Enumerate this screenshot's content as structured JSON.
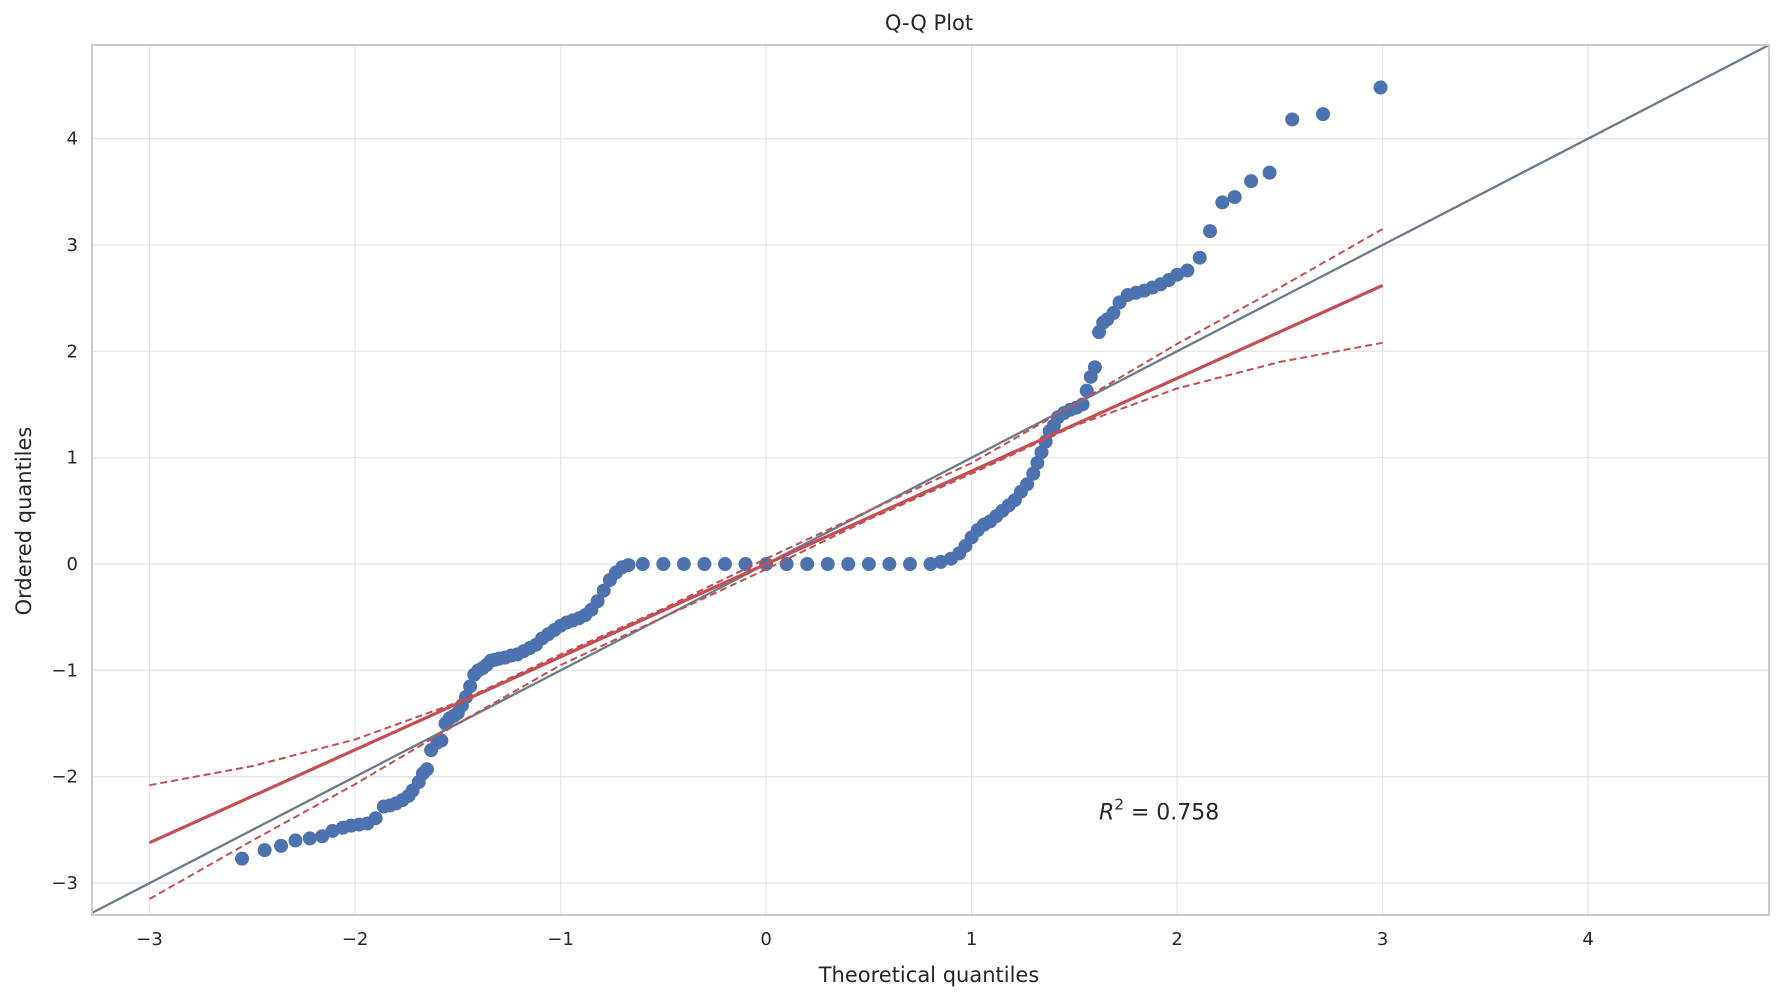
{
  "chart_data": {
    "type": "scatter",
    "title": "Q-Q Plot",
    "xlabel": "Theoretical quantiles",
    "ylabel": "Ordered quantiles",
    "xlim": [
      -3.28,
      4.88
    ],
    "ylim": [
      -3.3,
      4.88
    ],
    "xticks": [
      -3,
      -2,
      -1,
      0,
      1,
      2,
      3,
      4
    ],
    "yticks": [
      -3,
      -2,
      -1,
      0,
      1,
      2,
      3,
      4
    ],
    "xtick_labels": [
      "−3",
      "−2",
      "−1",
      "0",
      "1",
      "2",
      "3",
      "4"
    ],
    "ytick_labels": [
      "−3",
      "−2",
      "−1",
      "0",
      "1",
      "2",
      "3",
      "4"
    ],
    "grid": true,
    "annotation": {
      "prefix": "R",
      "superscript": "2",
      "text": " = 0.758",
      "x": 1.62,
      "y": -2.4
    },
    "series": [
      {
        "kind": "points",
        "color": "#4c72b0",
        "points": [
          [
            -2.55,
            -2.77
          ],
          [
            -2.44,
            -2.69
          ],
          [
            -2.36,
            -2.65
          ],
          [
            -2.29,
            -2.6
          ],
          [
            -2.22,
            -2.58
          ],
          [
            -2.16,
            -2.56
          ],
          [
            -2.11,
            -2.51
          ],
          [
            -2.06,
            -2.48
          ],
          [
            -2.02,
            -2.46
          ],
          [
            -1.98,
            -2.45
          ],
          [
            -1.94,
            -2.44
          ],
          [
            -1.9,
            -2.39
          ],
          [
            -1.86,
            -2.28
          ],
          [
            -1.83,
            -2.27
          ],
          [
            -1.8,
            -2.25
          ],
          [
            -1.77,
            -2.22
          ],
          [
            -1.74,
            -2.18
          ],
          [
            -1.72,
            -2.13
          ],
          [
            -1.69,
            -2.05
          ],
          [
            -1.67,
            -1.97
          ],
          [
            -1.65,
            -1.93
          ],
          [
            -1.63,
            -1.75
          ],
          [
            -1.6,
            -1.68
          ],
          [
            -1.58,
            -1.66
          ],
          [
            -1.56,
            -1.5
          ],
          [
            -1.54,
            -1.45
          ],
          [
            -1.52,
            -1.43
          ],
          [
            -1.5,
            -1.4
          ],
          [
            -1.48,
            -1.33
          ],
          [
            -1.46,
            -1.25
          ],
          [
            -1.44,
            -1.15
          ],
          [
            -1.42,
            -1.04
          ],
          [
            -1.4,
            -1.0
          ],
          [
            -1.38,
            -0.98
          ],
          [
            -1.36,
            -0.95
          ],
          [
            -1.34,
            -0.91
          ],
          [
            -1.32,
            -0.9
          ],
          [
            -1.3,
            -0.89
          ],
          [
            -1.27,
            -0.88
          ],
          [
            -1.24,
            -0.86
          ],
          [
            -1.21,
            -0.85
          ],
          [
            -1.18,
            -0.82
          ],
          [
            -1.15,
            -0.79
          ],
          [
            -1.12,
            -0.76
          ],
          [
            -1.09,
            -0.7
          ],
          [
            -1.06,
            -0.66
          ],
          [
            -1.03,
            -0.62
          ],
          [
            -1.0,
            -0.58
          ],
          [
            -0.97,
            -0.55
          ],
          [
            -0.94,
            -0.53
          ],
          [
            -0.91,
            -0.51
          ],
          [
            -0.88,
            -0.48
          ],
          [
            -0.85,
            -0.43
          ],
          [
            -0.82,
            -0.35
          ],
          [
            -0.79,
            -0.25
          ],
          [
            -0.76,
            -0.15
          ],
          [
            -0.73,
            -0.08
          ],
          [
            -0.7,
            -0.03
          ],
          [
            -0.67,
            -0.01
          ],
          [
            -0.6,
            0.0
          ],
          [
            -0.5,
            0.0
          ],
          [
            -0.4,
            0.0
          ],
          [
            -0.3,
            0.0
          ],
          [
            -0.2,
            0.0
          ],
          [
            -0.1,
            0.0
          ],
          [
            0.0,
            0.0
          ],
          [
            0.1,
            0.0
          ],
          [
            0.2,
            0.0
          ],
          [
            0.3,
            0.0
          ],
          [
            0.4,
            0.0
          ],
          [
            0.5,
            0.0
          ],
          [
            0.6,
            0.0
          ],
          [
            0.7,
            0.0
          ],
          [
            0.8,
            0.0
          ],
          [
            0.85,
            0.02
          ],
          [
            0.9,
            0.05
          ],
          [
            0.94,
            0.1
          ],
          [
            0.97,
            0.17
          ],
          [
            1.0,
            0.25
          ],
          [
            1.03,
            0.32
          ],
          [
            1.06,
            0.37
          ],
          [
            1.09,
            0.4
          ],
          [
            1.12,
            0.45
          ],
          [
            1.15,
            0.5
          ],
          [
            1.18,
            0.55
          ],
          [
            1.21,
            0.6
          ],
          [
            1.24,
            0.68
          ],
          [
            1.27,
            0.75
          ],
          [
            1.3,
            0.85
          ],
          [
            1.32,
            0.95
          ],
          [
            1.34,
            1.05
          ],
          [
            1.36,
            1.15
          ],
          [
            1.38,
            1.25
          ],
          [
            1.4,
            1.3
          ],
          [
            1.42,
            1.38
          ],
          [
            1.45,
            1.42
          ],
          [
            1.48,
            1.45
          ],
          [
            1.51,
            1.47
          ],
          [
            1.54,
            1.5
          ],
          [
            1.56,
            1.63
          ],
          [
            1.58,
            1.76
          ],
          [
            1.6,
            1.85
          ],
          [
            1.62,
            2.18
          ],
          [
            1.64,
            2.27
          ],
          [
            1.66,
            2.3
          ],
          [
            1.69,
            2.36
          ],
          [
            1.72,
            2.46
          ],
          [
            1.76,
            2.53
          ],
          [
            1.8,
            2.55
          ],
          [
            1.84,
            2.57
          ],
          [
            1.88,
            2.6
          ],
          [
            1.92,
            2.63
          ],
          [
            1.96,
            2.67
          ],
          [
            2.0,
            2.72
          ],
          [
            2.05,
            2.76
          ],
          [
            2.11,
            2.88
          ],
          [
            2.16,
            3.13
          ],
          [
            2.22,
            3.4
          ],
          [
            2.28,
            3.45
          ],
          [
            2.36,
            3.6
          ],
          [
            2.45,
            3.68
          ],
          [
            2.56,
            4.18
          ],
          [
            2.71,
            4.23
          ],
          [
            2.99,
            4.48
          ]
        ]
      },
      {
        "kind": "line",
        "color": "#6b7b8c",
        "style": "solid",
        "width": 2.3,
        "points": [
          [
            -3.28,
            -3.28
          ],
          [
            4.88,
            4.88
          ]
        ]
      },
      {
        "kind": "line",
        "color": "#c44e52",
        "style": "solid",
        "width": 3.2,
        "points": [
          [
            -3.0,
            -2.62
          ],
          [
            3.0,
            2.62
          ]
        ]
      },
      {
        "kind": "line",
        "color": "#c44e52",
        "style": "dashed",
        "width": 2,
        "points": [
          [
            -3.0,
            -2.08
          ],
          [
            -2.5,
            -1.9
          ],
          [
            -2.0,
            -1.65
          ],
          [
            -1.5,
            -1.3
          ],
          [
            -1.0,
            -0.85
          ],
          [
            -0.5,
            -0.42
          ],
          [
            0.0,
            0.05
          ],
          [
            0.5,
            0.5
          ],
          [
            1.0,
            0.95
          ],
          [
            1.5,
            1.5
          ],
          [
            2.0,
            2.07
          ],
          [
            2.5,
            2.6
          ],
          [
            3.0,
            3.15
          ]
        ]
      },
      {
        "kind": "line",
        "color": "#c44e52",
        "style": "dashed",
        "width": 2,
        "points": [
          [
            -3.0,
            -3.15
          ],
          [
            -2.5,
            -2.6
          ],
          [
            -2.0,
            -2.07
          ],
          [
            -1.5,
            -1.5
          ],
          [
            -1.0,
            -0.95
          ],
          [
            -0.5,
            -0.5
          ],
          [
            0.0,
            -0.05
          ],
          [
            0.5,
            0.42
          ],
          [
            1.0,
            0.85
          ],
          [
            1.5,
            1.3
          ],
          [
            2.0,
            1.65
          ],
          [
            2.5,
            1.9
          ],
          [
            3.0,
            2.08
          ]
        ]
      }
    ]
  }
}
